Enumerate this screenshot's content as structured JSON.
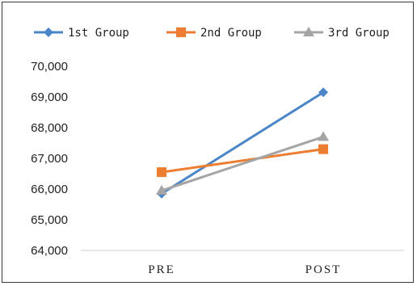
{
  "chart_data": {
    "type": "line",
    "title": "",
    "xlabel": "",
    "ylabel": "",
    "categories": [
      "PRE",
      "POST"
    ],
    "ylim": [
      64000,
      70000
    ],
    "yticks": [
      64000,
      65000,
      66000,
      67000,
      68000,
      69000,
      70000
    ],
    "ytick_labels": [
      "64,000",
      "65,000",
      "66,000",
      "67,000",
      "68,000",
      "69,000",
      "70,000"
    ],
    "grid": false,
    "legend_position": "top",
    "series": [
      {
        "name": "1st Group",
        "values": [
          65850,
          69150
        ],
        "color": "#4a86c8",
        "marker": "diamond"
      },
      {
        "name": "2nd Group",
        "values": [
          66550,
          67300
        ],
        "color": "#ed7d31",
        "marker": "square"
      },
      {
        "name": "3rd Group",
        "values": [
          65950,
          67700
        ],
        "color": "#a5a5a5",
        "marker": "triangle"
      }
    ]
  }
}
